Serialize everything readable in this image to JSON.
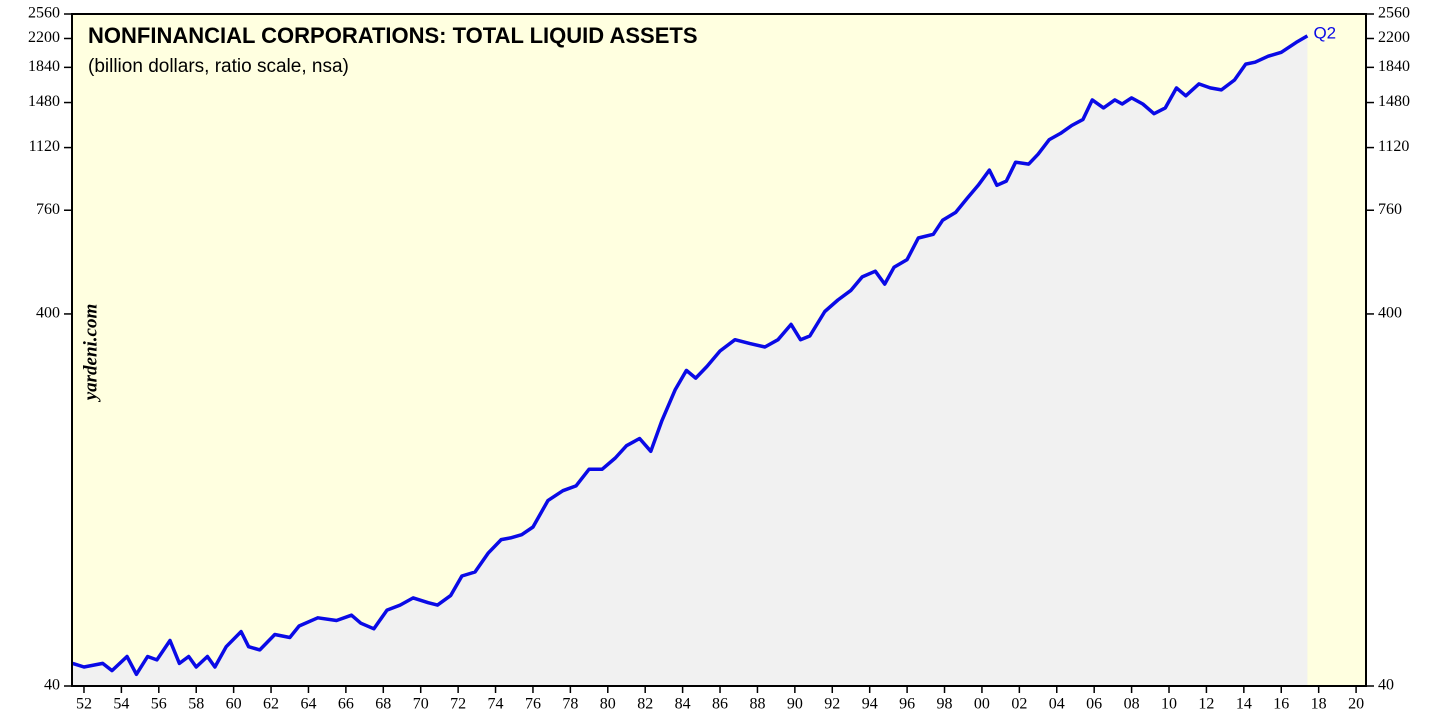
{
  "chart_data": {
    "type": "line",
    "title": "NONFINANCIAL CORPORATIONS: TOTAL LIQUID ASSETS",
    "subtitle": "(billion dollars, ratio scale, nsa)",
    "source": "yardeni.com",
    "annotation": "Q2",
    "color": "#0a0ae6",
    "area_color": "#f1f1f1",
    "background": "#ffffe0",
    "log_scale": true,
    "x": [
      1951.4,
      1952.0,
      1953.0,
      1953.5,
      1954.3,
      1954.8,
      1955.4,
      1955.9,
      1956.6,
      1957.1,
      1957.6,
      1958.0,
      1958.6,
      1959.0,
      1959.6,
      1960.4,
      1960.8,
      1961.4,
      1962.2,
      1963.0,
      1963.5,
      1964.5,
      1965.5,
      1966.3,
      1966.8,
      1967.5,
      1968.2,
      1968.9,
      1969.6,
      1970.4,
      1970.9,
      1971.6,
      1972.2,
      1972.9,
      1973.6,
      1974.3,
      1974.8,
      1975.4,
      1976.0,
      1976.8,
      1977.6,
      1978.3,
      1979.0,
      1979.7,
      1980.4,
      1981.0,
      1981.7,
      1982.3,
      1982.9,
      1983.6,
      1984.2,
      1984.7,
      1985.3,
      1986.0,
      1986.8,
      1987.6,
      1988.4,
      1989.1,
      1989.8,
      1990.3,
      1990.8,
      1991.6,
      1992.3,
      1993.0,
      1993.6,
      1994.3,
      1994.8,
      1995.3,
      1996.0,
      1996.6,
      1997.4,
      1997.9,
      1998.6,
      1999.2,
      1999.8,
      2000.4,
      2000.8,
      2001.3,
      2001.8,
      2002.5,
      2003.0,
      2003.6,
      2004.2,
      2004.8,
      2005.4,
      2005.9,
      2006.5,
      2007.1,
      2007.5,
      2008.0,
      2008.6,
      2009.2,
      2009.8,
      2010.4,
      2010.9,
      2011.6,
      2012.2,
      2012.8,
      2013.5,
      2014.1,
      2014.6,
      2015.3,
      2016.0,
      2016.8,
      2017.4
    ],
    "values": [
      46,
      45,
      46,
      44,
      48,
      43,
      48,
      47,
      53,
      46,
      48,
      45,
      48,
      45,
      51,
      56,
      51,
      50,
      55,
      54,
      58,
      61,
      60,
      62,
      59,
      57,
      64,
      66,
      69,
      67,
      66,
      70,
      79,
      81,
      91,
      99,
      100,
      102,
      107,
      126,
      134,
      138,
      153,
      153,
      164,
      177,
      185,
      171,
      207,
      250,
      282,
      269,
      289,
      318,
      341,
      333,
      326,
      341,
      375,
      341,
      349,
      406,
      436,
      463,
      503,
      521,
      481,
      534,
      560,
      640,
      655,
      714,
      750,
      817,
      887,
      974,
      887,
      910,
      1023,
      1011,
      1075,
      1177,
      1223,
      1284,
      1333,
      1504,
      1432,
      1504,
      1467,
      1523,
      1467,
      1381,
      1432,
      1620,
      1543,
      1661,
      1620,
      1600,
      1702,
      1877,
      1900,
      1972,
      2020,
      2148,
      2236
    ],
    "xlim": [
      1951.36,
      2020.53
    ],
    "xticks": [
      {
        "value": 1952,
        "label": "52"
      },
      {
        "value": 1954,
        "label": "54"
      },
      {
        "value": 1956,
        "label": "56"
      },
      {
        "value": 1958,
        "label": "58"
      },
      {
        "value": 1960,
        "label": "60"
      },
      {
        "value": 1962,
        "label": "62"
      },
      {
        "value": 1964,
        "label": "64"
      },
      {
        "value": 1966,
        "label": "66"
      },
      {
        "value": 1968,
        "label": "68"
      },
      {
        "value": 1970,
        "label": "70"
      },
      {
        "value": 1972,
        "label": "72"
      },
      {
        "value": 1974,
        "label": "74"
      },
      {
        "value": 1976,
        "label": "76"
      },
      {
        "value": 1978,
        "label": "78"
      },
      {
        "value": 1980,
        "label": "80"
      },
      {
        "value": 1982,
        "label": "82"
      },
      {
        "value": 1984,
        "label": "84"
      },
      {
        "value": 1986,
        "label": "86"
      },
      {
        "value": 1988,
        "label": "88"
      },
      {
        "value": 1990,
        "label": "90"
      },
      {
        "value": 1992,
        "label": "92"
      },
      {
        "value": 1994,
        "label": "94"
      },
      {
        "value": 1996,
        "label": "96"
      },
      {
        "value": 1998,
        "label": "98"
      },
      {
        "value": 2000,
        "label": "00"
      },
      {
        "value": 2002,
        "label": "02"
      },
      {
        "value": 2004,
        "label": "04"
      },
      {
        "value": 2006,
        "label": "06"
      },
      {
        "value": 2008,
        "label": "08"
      },
      {
        "value": 2010,
        "label": "10"
      },
      {
        "value": 2012,
        "label": "12"
      },
      {
        "value": 2014,
        "label": "14"
      },
      {
        "value": 2016,
        "label": "16"
      },
      {
        "value": 2018,
        "label": "18"
      },
      {
        "value": 2020,
        "label": "20"
      }
    ],
    "ylim": [
      40,
      2560
    ],
    "yticks": [
      40,
      400,
      760,
      1120,
      1480,
      1840,
      2200,
      2560
    ]
  }
}
